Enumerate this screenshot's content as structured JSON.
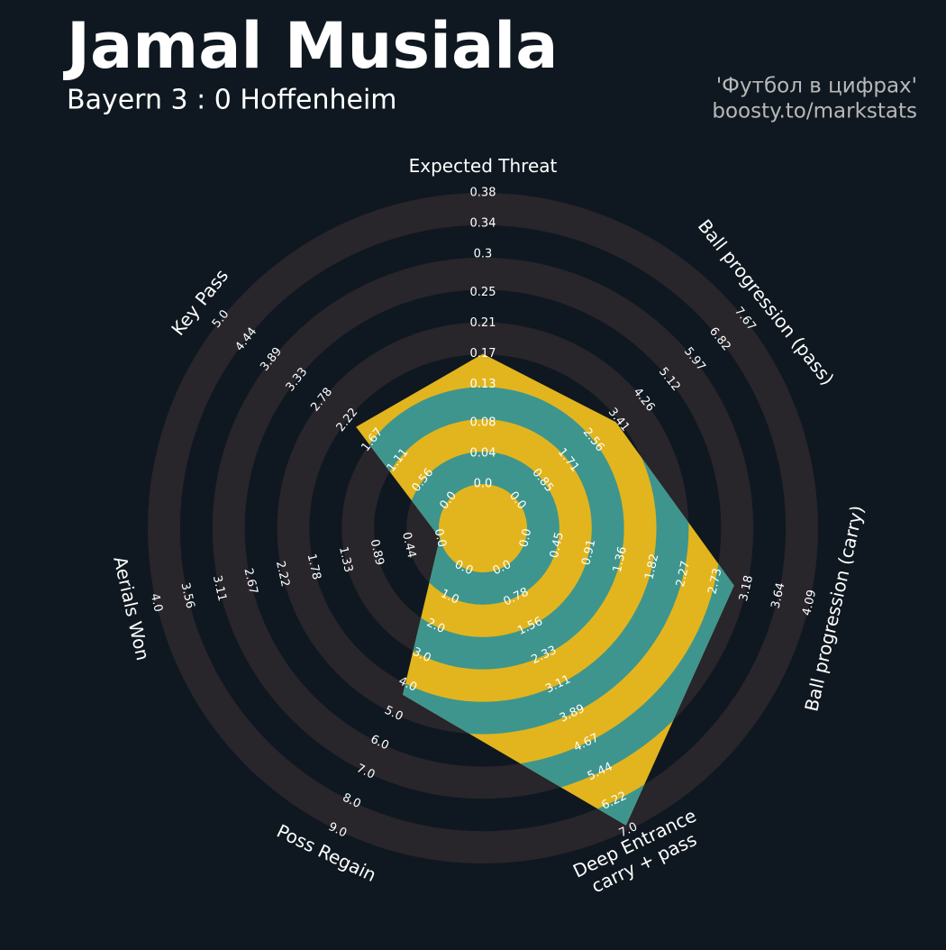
{
  "chart_data": {
    "type": "radar",
    "title": "Jamal Musiala",
    "subtitle": "Bayern 3 : 0 Hoffenheim",
    "credits": [
      "'Футбол в цифрах'",
      "boosty.to/markstats"
    ],
    "params": [
      [
        "Expected Threat"
      ],
      [
        "Ball progression (pass)"
      ],
      [
        "Ball progression (carry)"
      ],
      [
        "Deep Entrance",
        "carry + pass"
      ],
      [
        "Poss Regain"
      ],
      [
        "Aerials Won"
      ],
      [
        "Key Pass"
      ]
    ],
    "axes": [
      {
        "lim": [
          0,
          0.38
        ],
        "ticks": [
          {
            "value": 0,
            "label": "0.0"
          },
          0.04,
          0.08,
          0.13,
          0.17,
          0.21,
          0.25,
          0.3,
          0.34,
          0.38
        ]
      },
      {
        "lim": [
          0,
          7.67
        ],
        "ticks": [
          {
            "value": 0,
            "label": "0.0"
          },
          0.85,
          1.71,
          2.56,
          3.41,
          4.26,
          5.12,
          5.97,
          6.82,
          7.67
        ]
      },
      {
        "lim": [
          0,
          4.09
        ],
        "ticks": [
          {
            "value": 0,
            "label": "0.0"
          },
          0.45,
          0.91,
          1.36,
          1.82,
          2.27,
          2.73,
          3.18,
          3.64,
          4.09
        ]
      },
      {
        "lim": [
          0,
          7
        ],
        "ticks": [
          {
            "value": 0,
            "label": "0.0"
          },
          0.78,
          1.56,
          2.33,
          3.11,
          3.89,
          4.67,
          5.44,
          6.22,
          {
            "value": 7,
            "label": "7.0"
          }
        ]
      },
      {
        "lim": [
          0,
          9
        ],
        "ticks": [
          {
            "value": 0,
            "label": "0.0"
          },
          {
            "value": 1,
            "label": "1.0"
          },
          {
            "value": 2,
            "label": "2.0"
          },
          {
            "value": 3,
            "label": "3.0"
          },
          {
            "value": 4,
            "label": "4.0"
          },
          {
            "value": 5,
            "label": "5.0"
          },
          {
            "value": 6,
            "label": "6.0"
          },
          {
            "value": 7,
            "label": "7.0"
          },
          {
            "value": 8,
            "label": "8.0"
          },
          {
            "value": 9,
            "label": "9.0"
          }
        ]
      },
      {
        "lim": [
          0,
          4
        ],
        "ticks": [
          {
            "value": 0,
            "label": "0.0"
          },
          0.44,
          0.89,
          1.33,
          1.78,
          2.22,
          2.67,
          3.11,
          3.56,
          {
            "value": 4,
            "label": "4.0"
          }
        ]
      },
      {
        "lim": [
          0,
          5
        ],
        "ticks": [
          {
            "value": 0,
            "label": "0.0"
          },
          0.56,
          1.11,
          1.67,
          2.22,
          2.78,
          3.33,
          3.89,
          4.44,
          {
            "value": 5,
            "label": "5.0"
          }
        ]
      }
    ],
    "values": [
      0.17,
      3.32,
      3.0,
      6.87,
      4.35,
      0,
      2.03
    ],
    "colors": {
      "ring": "#28252b",
      "fill": "#e2b51e",
      "band": "#3e958e"
    }
  }
}
